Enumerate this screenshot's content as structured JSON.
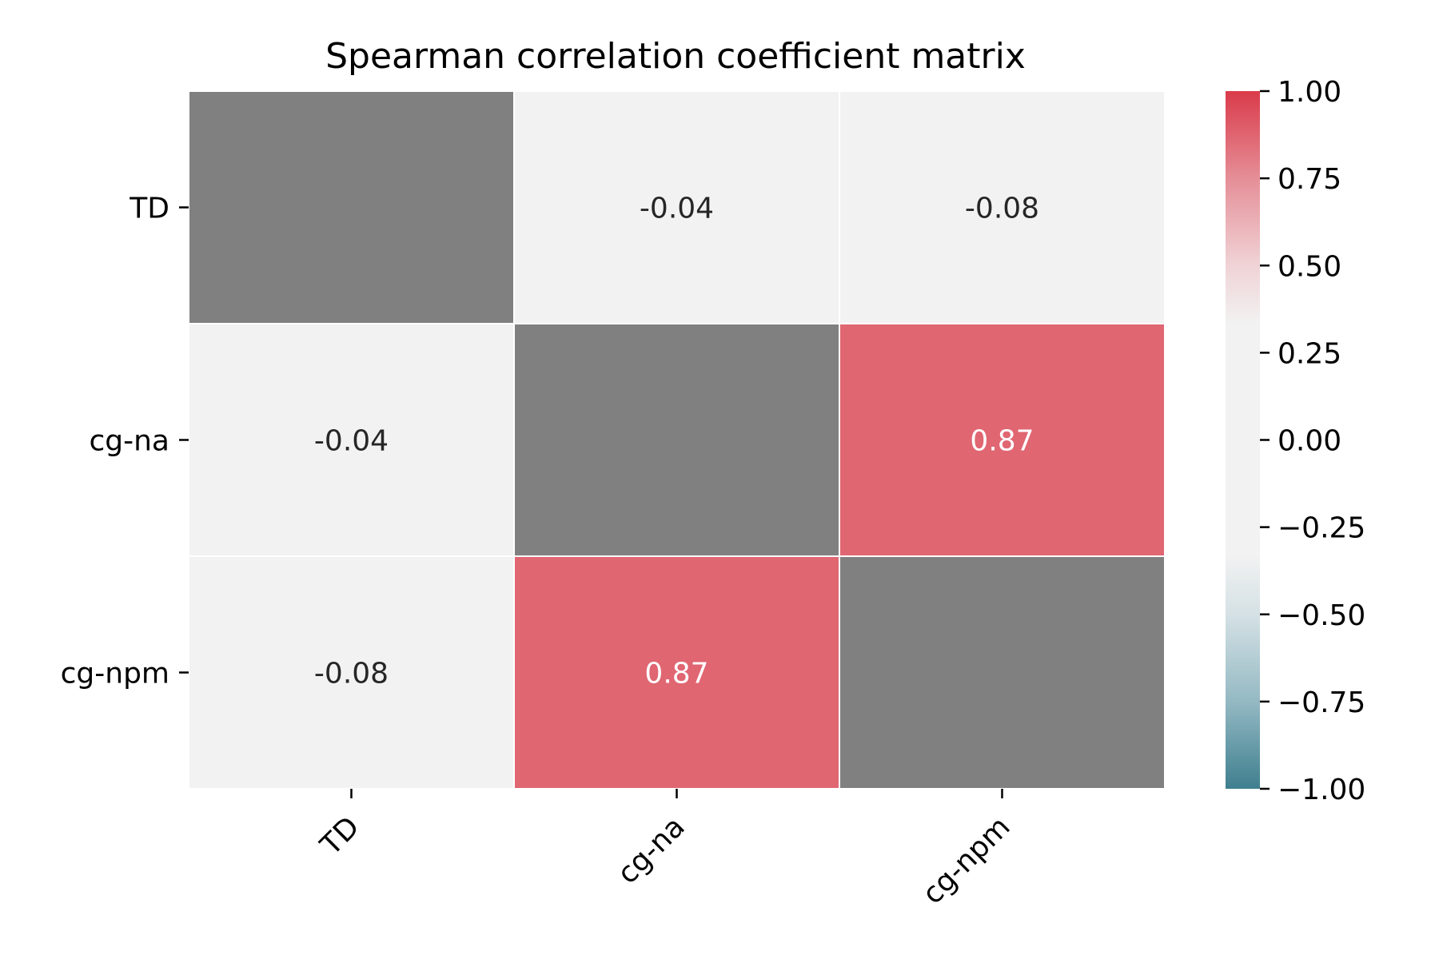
{
  "chart_data": {
    "type": "heatmap",
    "title": "Spearman correlation coefficient matrix",
    "xlabel": "",
    "ylabel": "",
    "row_labels": [
      "TD",
      "cg-na",
      "cg-npm"
    ],
    "col_labels": [
      "TD",
      "cg-na",
      "cg-npm"
    ],
    "values": [
      [
        null,
        -0.04,
        -0.08
      ],
      [
        -0.04,
        null,
        0.87
      ],
      [
        -0.08,
        0.87,
        null
      ]
    ],
    "cell_labels": [
      [
        "",
        "-0.04",
        "-0.08"
      ],
      [
        "-0.04",
        "",
        "0.87"
      ],
      [
        "-0.08",
        "0.87",
        ""
      ]
    ],
    "masked_diagonal": true,
    "masked_color": "#808080",
    "colorbar": {
      "range": [
        -1.0,
        1.0
      ],
      "tick_values": [
        1.0,
        0.75,
        0.5,
        0.25,
        0.0,
        -0.25,
        -0.5,
        -0.75,
        -1.0
      ],
      "tick_labels": [
        "1.00",
        "0.75",
        "0.50",
        "0.25",
        "0.00",
        "−0.25",
        "−0.50",
        "−0.75",
        "−1.00"
      ],
      "colormap": [
        {
          "value": -1.0,
          "color": "#3f7f8f"
        },
        {
          "value": -0.75,
          "color": "#94b9c3"
        },
        {
          "value": -0.5,
          "color": "#d5e1e5"
        },
        {
          "value": -0.33,
          "color": "#f2f2f2"
        },
        {
          "value": 0.33,
          "color": "#f2f2f2"
        },
        {
          "value": 0.5,
          "color": "#f0d3d6"
        },
        {
          "value": 0.75,
          "color": "#e58e97"
        },
        {
          "value": 1.0,
          "color": "#da3b4a"
        }
      ]
    },
    "x_tick_rotation": "45deg",
    "grid": false,
    "cell_gap_color": "#ffffff"
  }
}
